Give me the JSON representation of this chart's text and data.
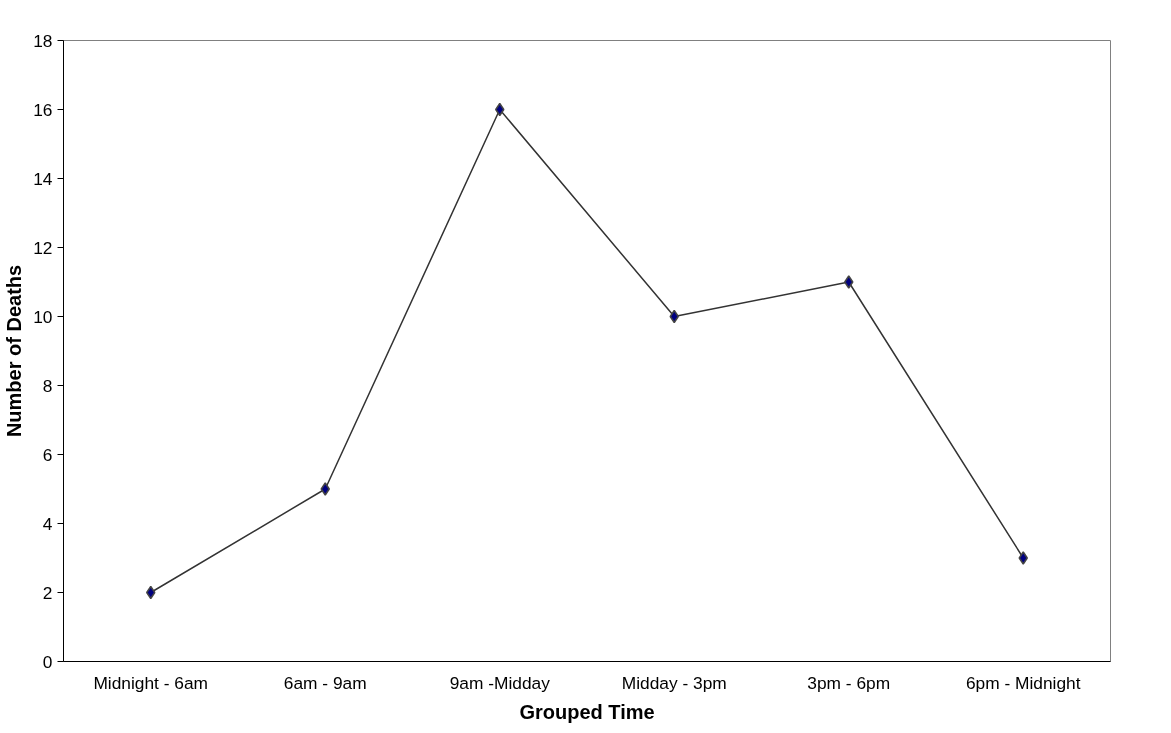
{
  "chart_data": {
    "type": "line",
    "xlabel": "Grouped Time",
    "ylabel": "Number of Deaths",
    "categories": [
      "Midnight - 6am",
      "6am - 9am",
      "9am -Midday",
      "Midday - 3pm",
      "3pm - 6pm",
      "6pm - Midnight"
    ],
    "series": [
      {
        "color": "#000080",
        "values": [
          2,
          5,
          16,
          10,
          11,
          3
        ]
      }
    ],
    "ylim": [
      0,
      18
    ],
    "yticks": [
      0,
      2,
      4,
      6,
      8,
      10,
      12,
      14,
      16,
      18
    ],
    "grid": false,
    "marker": "diamond",
    "line_style": "solid"
  }
}
